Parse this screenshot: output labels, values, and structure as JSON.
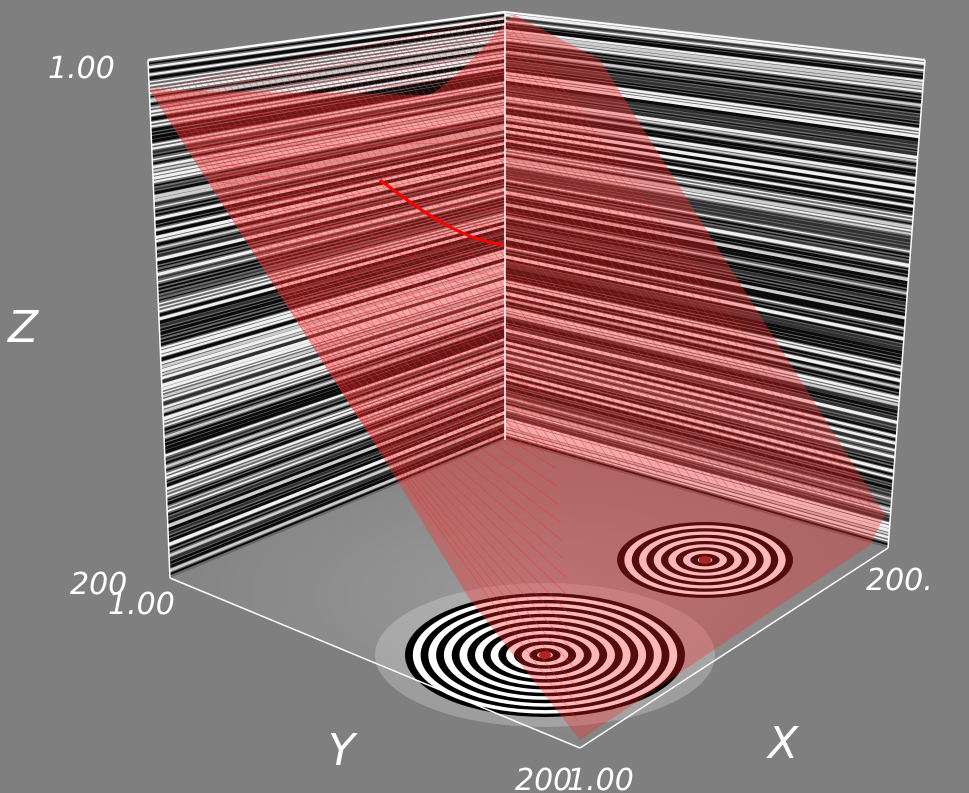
{
  "colors": {
    "background": "#7f7f7f",
    "surface": "#ff0000",
    "axis": "#ffffff",
    "labels": "#ffffff"
  },
  "chart_data": {
    "type": "surface",
    "title": "",
    "axes": {
      "x": {
        "label": "X",
        "range": [
          1,
          200
        ],
        "tick_labels": [
          "1.00",
          "200."
        ]
      },
      "y": {
        "label": "Y",
        "range": [
          1,
          200
        ],
        "tick_labels": [
          "1.00",
          "200"
        ]
      },
      "z": {
        "label": "Z",
        "range": [
          0,
          1
        ],
        "tick_labels": [
          "1.00"
        ]
      }
    },
    "back_walls": {
      "pattern": "grayscale horizontal bands"
    },
    "floor": {
      "pattern": "grayscale concentric rings",
      "ring_centers": [
        [
          0.47,
          0.63
        ],
        [
          0.82,
          0.45
        ]
      ]
    },
    "surface": {
      "style": "translucent red mesh",
      "color": "red"
    },
    "grid": false,
    "legend": "none"
  },
  "labels": {
    "z_max": "1.00",
    "z_axis": "Z",
    "y_axis": "Y",
    "x_axis": "X",
    "left_200": "200",
    "left_1": "1.00",
    "right_200": "200.",
    "bottom_200": "200",
    "bottom_1": "1.00"
  }
}
